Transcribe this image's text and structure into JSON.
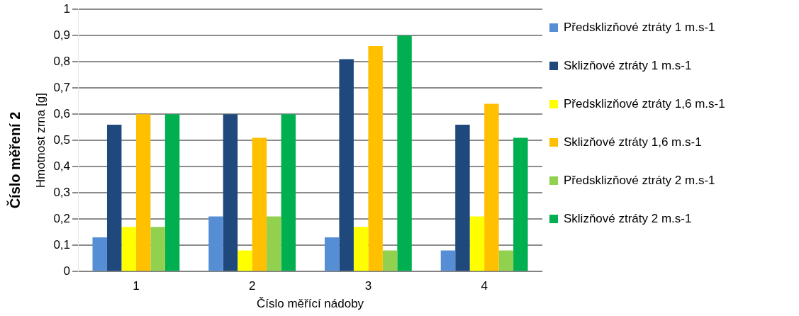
{
  "chart_data": {
    "type": "bar",
    "title": "Číslo měření 2",
    "xlabel": "Číslo měřící nádoby",
    "ylabel": "Hmotnost zrna [g]",
    "categories": [
      "1",
      "2",
      "3",
      "4"
    ],
    "series": [
      {
        "name": "Předsklizňové ztráty 1 m.s-1",
        "color": "#558ed5",
        "values": [
          0.13,
          0.21,
          0.13,
          0.08
        ]
      },
      {
        "name": "Sklizňové ztráty 1 m.s-1",
        "color": "#1f497d",
        "values": [
          0.56,
          0.6,
          0.81,
          0.56
        ]
      },
      {
        "name": "Předsklizňové ztráty 1,6 m.s-1",
        "color": "#ffff00",
        "values": [
          0.17,
          0.08,
          0.17,
          0.21
        ]
      },
      {
        "name": "Sklizňové ztráty 1,6 m.s-1",
        "color": "#ffc000",
        "values": [
          0.6,
          0.51,
          0.86,
          0.64
        ]
      },
      {
        "name": "Předsklizňové ztráty 2 m.s-1",
        "color": "#92d050",
        "values": [
          0.17,
          0.21,
          0.08,
          0.08
        ]
      },
      {
        "name": "Sklizňové ztráty 2 m.s-1",
        "color": "#00b050",
        "values": [
          0.6,
          0.6,
          0.9,
          0.51
        ]
      }
    ],
    "ylim": [
      0,
      1
    ],
    "yticks": [
      0,
      {
        "value": 0.1,
        "label": "0,1"
      },
      {
        "value": 0.2,
        "label": "0,2"
      },
      {
        "value": 0.3,
        "label": "0,3"
      },
      {
        "value": 0.4,
        "label": "0,4"
      },
      {
        "value": 0.5,
        "label": "0,5"
      },
      {
        "value": 0.6,
        "label": "0,6"
      },
      {
        "value": 0.7,
        "label": "0,7"
      },
      {
        "value": 0.8,
        "label": "0,8"
      },
      {
        "value": 0.9,
        "label": "0,9"
      },
      1
    ],
    "grid": "y",
    "legend": "right"
  }
}
